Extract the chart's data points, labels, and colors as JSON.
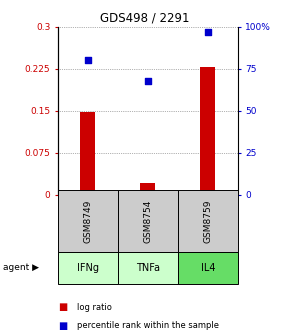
{
  "title": "GDS498 / 2291",
  "samples": [
    "GSM8749",
    "GSM8754",
    "GSM8759"
  ],
  "agents": [
    "IFNg",
    "TNFa",
    "IL4"
  ],
  "log_ratios": [
    0.148,
    0.022,
    0.228
  ],
  "percentile_ranks": [
    0.8,
    0.68,
    0.97
  ],
  "bar_color": "#cc0000",
  "dot_color": "#0000cc",
  "ylim_left": [
    0,
    0.3
  ],
  "ylim_right": [
    0,
    1.0
  ],
  "yticks_left": [
    0,
    0.075,
    0.15,
    0.225,
    0.3
  ],
  "ytick_labels_left": [
    "0",
    "0.075",
    "0.15",
    "0.225",
    "0.3"
  ],
  "yticks_right": [
    0,
    0.25,
    0.5,
    0.75,
    1.0
  ],
  "ytick_labels_right": [
    "0",
    "25",
    "50",
    "75",
    "100%"
  ],
  "agent_colors": [
    "#ccffcc",
    "#ccffcc",
    "#66dd66"
  ],
  "sample_box_color": "#cccccc",
  "bar_width": 0.25
}
